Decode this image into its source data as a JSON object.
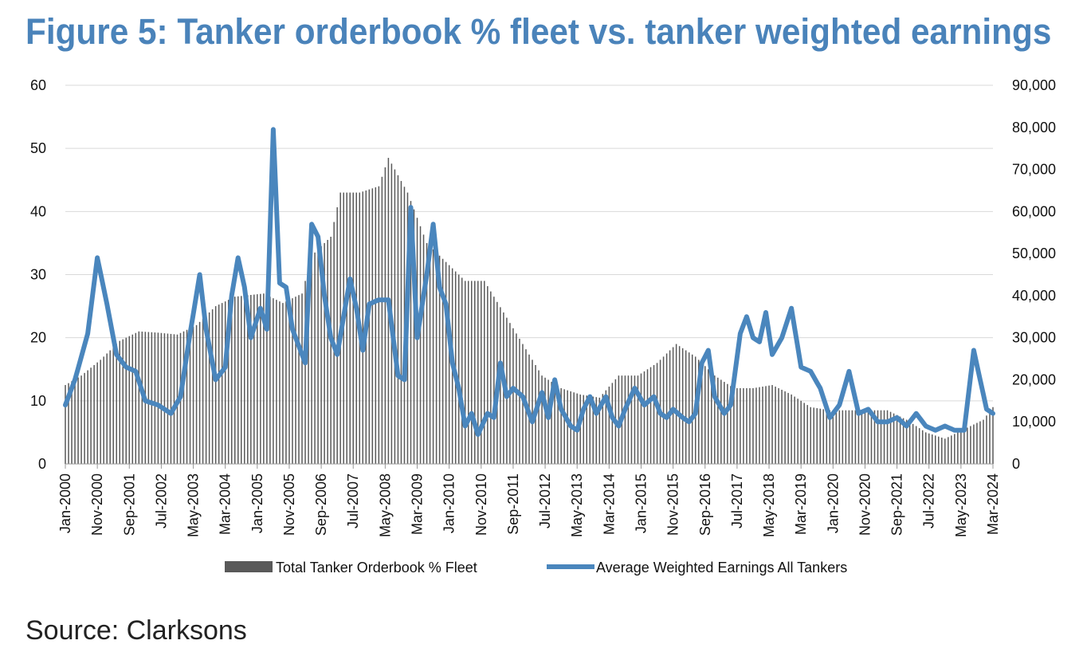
{
  "title": "Figure 5: Tanker orderbook % fleet vs. tanker weighted earnings",
  "source": "Source: Clarksons",
  "colors": {
    "title": "#4a83ba",
    "bar": "#595959",
    "line": "#4a86bd",
    "grid": "#d9d9d9"
  },
  "chart_data": {
    "type": "bar+line",
    "start_month": "2000-01",
    "end_month": "2024-03",
    "x_tick_labels": [
      "Jan-2000",
      "Nov-2000",
      "Sep-2001",
      "Jul-2002",
      "May-2003",
      "Mar-2004",
      "Jan-2005",
      "Nov-2005",
      "Sep-2006",
      "Jul-2007",
      "May-2008",
      "Mar-2009",
      "Jan-2010",
      "Nov-2010",
      "Sep-2011",
      "Jul-2012",
      "May-2013",
      "Mar-2014",
      "Jan-2015",
      "Nov-2015",
      "Sep-2016",
      "Jul-2017",
      "May-2018",
      "Mar-2019",
      "Jan-2020",
      "Nov-2020",
      "Sep-2021",
      "Jul-2022",
      "May-2023",
      "Mar-2024"
    ],
    "y_left": {
      "min": 0,
      "max": 60,
      "step": 10,
      "tick_labels": [
        "0",
        "10",
        "20",
        "30",
        "40",
        "50",
        "60"
      ]
    },
    "y_right": {
      "min": 0,
      "max": 90000,
      "step": 10000,
      "tick_labels": [
        "0",
        "10,000",
        "20,000",
        "30,000",
        "40,000",
        "50,000",
        "60,000",
        "70,000",
        "80,000",
        "90,000"
      ]
    },
    "series": [
      {
        "name": "Total Tanker Orderbook % Fleet",
        "type": "bar",
        "axis": "left",
        "anchors": [
          [
            "2000-01",
            12.5
          ],
          [
            "2000-06",
            14
          ],
          [
            "2000-12",
            16.5
          ],
          [
            "2001-06",
            19.5
          ],
          [
            "2001-12",
            21
          ],
          [
            "2002-06",
            20.8
          ],
          [
            "2002-12",
            20.5
          ],
          [
            "2003-06",
            22
          ],
          [
            "2003-12",
            25
          ],
          [
            "2004-06",
            26.5
          ],
          [
            "2005-03",
            27
          ],
          [
            "2005-09",
            25.5
          ],
          [
            "2006-03",
            27
          ],
          [
            "2006-06",
            33
          ],
          [
            "2006-12",
            36
          ],
          [
            "2007-03",
            43
          ],
          [
            "2007-09",
            43
          ],
          [
            "2008-03",
            44
          ],
          [
            "2008-06",
            48.5
          ],
          [
            "2008-12",
            43
          ],
          [
            "2009-06",
            35
          ],
          [
            "2009-12",
            32
          ],
          [
            "2010-06",
            29
          ],
          [
            "2010-12",
            29
          ],
          [
            "2011-06",
            24
          ],
          [
            "2011-12",
            19
          ],
          [
            "2012-06",
            14
          ],
          [
            "2012-12",
            12
          ],
          [
            "2013-06",
            11
          ],
          [
            "2013-12",
            10.5
          ],
          [
            "2014-06",
            14
          ],
          [
            "2014-12",
            14
          ],
          [
            "2015-06",
            16
          ],
          [
            "2015-12",
            19
          ],
          [
            "2016-06",
            17
          ],
          [
            "2016-12",
            14
          ],
          [
            "2017-06",
            12
          ],
          [
            "2017-12",
            12
          ],
          [
            "2018-06",
            12.5
          ],
          [
            "2018-12",
            11
          ],
          [
            "2019-06",
            9
          ],
          [
            "2019-12",
            8.5
          ],
          [
            "2020-06",
            8.5
          ],
          [
            "2020-12",
            8.5
          ],
          [
            "2021-06",
            8.5
          ],
          [
            "2021-12",
            7
          ],
          [
            "2022-06",
            5
          ],
          [
            "2022-12",
            4
          ],
          [
            "2023-06",
            5.5
          ],
          [
            "2023-12",
            7
          ],
          [
            "2024-03",
            9
          ]
        ]
      },
      {
        "name": "Average Weighted Earnings All Tankers",
        "type": "line",
        "axis": "right",
        "anchors": [
          [
            "2000-01",
            14000
          ],
          [
            "2000-04",
            20000
          ],
          [
            "2000-08",
            31000
          ],
          [
            "2000-11",
            49000
          ],
          [
            "2001-02",
            38000
          ],
          [
            "2001-05",
            26000
          ],
          [
            "2001-08",
            23000
          ],
          [
            "2001-11",
            22000
          ],
          [
            "2002-02",
            15000
          ],
          [
            "2002-06",
            14000
          ],
          [
            "2002-10",
            12000
          ],
          [
            "2003-01",
            16000
          ],
          [
            "2003-04",
            31000
          ],
          [
            "2003-07",
            45000
          ],
          [
            "2003-09",
            32000
          ],
          [
            "2003-12",
            20000
          ],
          [
            "2004-03",
            23000
          ],
          [
            "2004-05",
            40000
          ],
          [
            "2004-07",
            49000
          ],
          [
            "2004-09",
            42000
          ],
          [
            "2004-11",
            30000
          ],
          [
            "2005-02",
            37000
          ],
          [
            "2005-04",
            32000
          ],
          [
            "2005-06",
            79500
          ],
          [
            "2005-08",
            43000
          ],
          [
            "2005-10",
            42000
          ],
          [
            "2005-12",
            32000
          ],
          [
            "2006-02",
            28000
          ],
          [
            "2006-04",
            24000
          ],
          [
            "2006-06",
            57000
          ],
          [
            "2006-08",
            54000
          ],
          [
            "2006-10",
            40000
          ],
          [
            "2006-12",
            30000
          ],
          [
            "2007-02",
            26000
          ],
          [
            "2007-04",
            35000
          ],
          [
            "2007-06",
            44000
          ],
          [
            "2007-08",
            37000
          ],
          [
            "2007-10",
            27000
          ],
          [
            "2007-12",
            38000
          ],
          [
            "2008-03",
            39000
          ],
          [
            "2008-06",
            39000
          ],
          [
            "2008-09",
            21000
          ],
          [
            "2008-11",
            20000
          ],
          [
            "2009-01",
            61000
          ],
          [
            "2009-03",
            30000
          ],
          [
            "2009-06",
            45000
          ],
          [
            "2009-08",
            57000
          ],
          [
            "2009-10",
            42000
          ],
          [
            "2009-12",
            38000
          ],
          [
            "2010-02",
            24000
          ],
          [
            "2010-04",
            18000
          ],
          [
            "2010-06",
            9000
          ],
          [
            "2010-08",
            12000
          ],
          [
            "2010-10",
            7000
          ],
          [
            "2011-01",
            12000
          ],
          [
            "2011-03",
            11000
          ],
          [
            "2011-05",
            24000
          ],
          [
            "2011-07",
            16000
          ],
          [
            "2011-09",
            18000
          ],
          [
            "2011-12",
            16000
          ],
          [
            "2012-03",
            10000
          ],
          [
            "2012-06",
            17000
          ],
          [
            "2012-08",
            11000
          ],
          [
            "2012-10",
            20000
          ],
          [
            "2012-12",
            13000
          ],
          [
            "2013-03",
            9000
          ],
          [
            "2013-05",
            8000
          ],
          [
            "2013-07",
            13000
          ],
          [
            "2013-09",
            16000
          ],
          [
            "2013-11",
            12000
          ],
          [
            "2014-02",
            16000
          ],
          [
            "2014-04",
            11000
          ],
          [
            "2014-06",
            9000
          ],
          [
            "2014-08",
            13000
          ],
          [
            "2014-11",
            18000
          ],
          [
            "2015-02",
            14000
          ],
          [
            "2015-05",
            16000
          ],
          [
            "2015-07",
            12000
          ],
          [
            "2015-09",
            11000
          ],
          [
            "2015-11",
            13000
          ],
          [
            "2016-02",
            11000
          ],
          [
            "2016-04",
            10000
          ],
          [
            "2016-06",
            12000
          ],
          [
            "2016-08",
            24000
          ],
          [
            "2016-10",
            27000
          ],
          [
            "2016-12",
            16000
          ],
          [
            "2017-03",
            12000
          ],
          [
            "2017-05",
            14000
          ],
          [
            "2017-08",
            31000
          ],
          [
            "2017-10",
            35000
          ],
          [
            "2017-12",
            30000
          ],
          [
            "2018-02",
            29000
          ],
          [
            "2018-04",
            36000
          ],
          [
            "2018-06",
            26000
          ],
          [
            "2018-09",
            30000
          ],
          [
            "2018-12",
            37000
          ],
          [
            "2019-03",
            23000
          ],
          [
            "2019-06",
            22000
          ],
          [
            "2019-09",
            18000
          ],
          [
            "2019-12",
            11000
          ],
          [
            "2020-03",
            14000
          ],
          [
            "2020-06",
            22000
          ],
          [
            "2020-09",
            12000
          ],
          [
            "2020-12",
            13000
          ],
          [
            "2021-03",
            10000
          ],
          [
            "2021-06",
            10000
          ],
          [
            "2021-09",
            11000
          ],
          [
            "2021-12",
            9000
          ],
          [
            "2022-03",
            12000
          ],
          [
            "2022-06",
            9000
          ],
          [
            "2022-09",
            8000
          ],
          [
            "2022-12",
            9000
          ],
          [
            "2023-03",
            8000
          ],
          [
            "2023-06",
            8000
          ],
          [
            "2023-09",
            27000
          ],
          [
            "2023-11",
            20000
          ],
          [
            "2024-01",
            13000
          ],
          [
            "2024-03",
            12000
          ]
        ]
      }
    ],
    "legend": {
      "position": "bottom"
    }
  }
}
